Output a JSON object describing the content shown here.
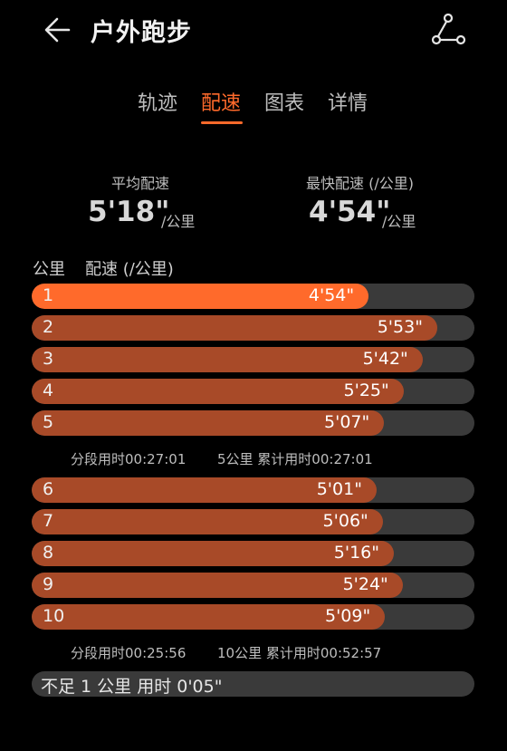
{
  "header": {
    "title": "户外跑步",
    "back_icon": "arrow-left-icon",
    "share_icon": "route-share-icon"
  },
  "tabs": [
    {
      "label": "轨迹",
      "active": false
    },
    {
      "label": "配速",
      "active": true
    },
    {
      "label": "图表",
      "active": false
    },
    {
      "label": "详情",
      "active": false
    }
  ],
  "summary": {
    "avg_label": "平均配速",
    "avg_value": "5'18\"",
    "avg_unit": "/公里",
    "fastest_label": "最快配速 (/公里)",
    "fastest_value": "4'54\"",
    "fastest_unit": "/公里"
  },
  "list_header": {
    "km_label": "公里",
    "pace_label": "配速 (/公里)"
  },
  "colors": {
    "accent": "#ff6a2b",
    "bar_normal": "#a84a28",
    "bar_fastest": "#ff6a2b",
    "track": "#3a3a3a"
  },
  "splits": [
    {
      "km": "1",
      "pace": "4'54\"",
      "fill_pct": 76.1,
      "fastest": true
    },
    {
      "km": "2",
      "pace": "5'53\"",
      "fill_pct": 91.6,
      "fastest": false
    },
    {
      "km": "3",
      "pace": "5'42\"",
      "fill_pct": 88.3,
      "fastest": false
    },
    {
      "km": "4",
      "pace": "5'25\"",
      "fill_pct": 84.0,
      "fastest": false
    },
    {
      "km": "5",
      "pace": "5'07\"",
      "fill_pct": 79.6,
      "fastest": false
    },
    {
      "km": "6",
      "pace": "5'01\"",
      "fill_pct": 77.9,
      "fastest": false
    },
    {
      "km": "7",
      "pace": "5'06\"",
      "fill_pct": 79.3,
      "fastest": false
    },
    {
      "km": "8",
      "pace": "5'16\"",
      "fill_pct": 81.8,
      "fastest": false
    },
    {
      "km": "9",
      "pace": "5'24\"",
      "fill_pct": 83.8,
      "fastest": false
    },
    {
      "km": "10",
      "pace": "5'09\"",
      "fill_pct": 79.8,
      "fastest": false
    }
  ],
  "segment_summaries": [
    {
      "segment_time": "分段用时00:27:01",
      "cumulative": "5公里 累计用时00:27:01"
    },
    {
      "segment_time": "分段用时00:25:56",
      "cumulative": "10公里 累计用时00:52:57"
    }
  ],
  "remainder": {
    "text": "不足 1 公里 用时 0'05\""
  }
}
